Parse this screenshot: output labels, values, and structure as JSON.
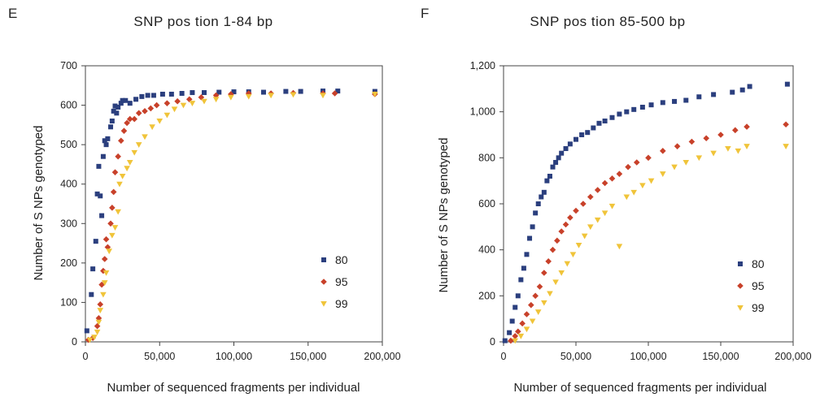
{
  "chart_data": [
    {
      "type": "scatter",
      "panel_letter": "E",
      "title": "SNP pos tion 1-84 bp",
      "xlabel": "Number of sequenced fragments per individual",
      "ylabel": "Number of S NPs genotyped",
      "xlim": [
        0,
        200000
      ],
      "ylim": [
        0,
        700
      ],
      "xticks": [
        0,
        50000,
        100000,
        150000,
        200000
      ],
      "xtick_labels": [
        "0",
        "50,000",
        "100,000",
        "150,000",
        "200,000"
      ],
      "yticks": [
        0,
        100,
        200,
        300,
        400,
        500,
        600,
        700
      ],
      "ytick_labels": [
        "0",
        "100",
        "200",
        "300",
        "400",
        "500",
        "600",
        "700"
      ],
      "legend_position": "bottom-right",
      "series": [
        {
          "name": "80",
          "color": "#2b3f7e",
          "marker": "square",
          "points": [
            [
              1000,
              28
            ],
            [
              4000,
              120
            ],
            [
              5000,
              185
            ],
            [
              7000,
              255
            ],
            [
              8000,
              375
            ],
            [
              9000,
              445
            ],
            [
              10000,
              370
            ],
            [
              11000,
              320
            ],
            [
              12000,
              470
            ],
            [
              13000,
              510
            ],
            [
              14000,
              500
            ],
            [
              15000,
              515
            ],
            [
              17000,
              545
            ],
            [
              18000,
              560
            ],
            [
              19000,
              585
            ],
            [
              20000,
              598
            ],
            [
              21000,
              580
            ],
            [
              22000,
              595
            ],
            [
              24000,
              605
            ],
            [
              25000,
              612
            ],
            [
              27000,
              612
            ],
            [
              30000,
              605
            ],
            [
              34000,
              615
            ],
            [
              38000,
              622
            ],
            [
              42000,
              625
            ],
            [
              46000,
              625
            ],
            [
              52000,
              628
            ],
            [
              58000,
              628
            ],
            [
              65000,
              630
            ],
            [
              72000,
              632
            ],
            [
              80000,
              632
            ],
            [
              90000,
              633
            ],
            [
              100000,
              634
            ],
            [
              110000,
              634
            ],
            [
              120000,
              633
            ],
            [
              135000,
              635
            ],
            [
              145000,
              635
            ],
            [
              160000,
              636
            ],
            [
              170000,
              636
            ],
            [
              195000,
              635
            ]
          ]
        },
        {
          "name": "95",
          "color": "#c8412a",
          "marker": "diamond",
          "points": [
            [
              2000,
              5
            ],
            [
              5000,
              10
            ],
            [
              8000,
              40
            ],
            [
              9000,
              60
            ],
            [
              10000,
              95
            ],
            [
              11000,
              145
            ],
            [
              12000,
              180
            ],
            [
              13000,
              210
            ],
            [
              14000,
              260
            ],
            [
              15000,
              240
            ],
            [
              17000,
              300
            ],
            [
              18000,
              340
            ],
            [
              19000,
              380
            ],
            [
              20000,
              430
            ],
            [
              22000,
              470
            ],
            [
              24000,
              510
            ],
            [
              26000,
              535
            ],
            [
              28000,
              555
            ],
            [
              30000,
              565
            ],
            [
              33000,
              565
            ],
            [
              36000,
              580
            ],
            [
              40000,
              585
            ],
            [
              44000,
              592
            ],
            [
              48000,
              600
            ],
            [
              55000,
              605
            ],
            [
              62000,
              610
            ],
            [
              70000,
              615
            ],
            [
              78000,
              620
            ],
            [
              88000,
              625
            ],
            [
              98000,
              628
            ],
            [
              110000,
              630
            ],
            [
              125000,
              630
            ],
            [
              140000,
              631
            ],
            [
              160000,
              630
            ],
            [
              168000,
              630
            ],
            [
              195000,
              628
            ]
          ]
        },
        {
          "name": "99",
          "color": "#f0c43a",
          "marker": "triangle",
          "points": [
            [
              3000,
              5
            ],
            [
              6000,
              12
            ],
            [
              8000,
              25
            ],
            [
              9000,
              50
            ],
            [
              10000,
              80
            ],
            [
              12000,
              120
            ],
            [
              13000,
              150
            ],
            [
              14000,
              175
            ],
            [
              16000,
              230
            ],
            [
              18000,
              270
            ],
            [
              20000,
              290
            ],
            [
              22000,
              330
            ],
            [
              23000,
              400
            ],
            [
              25000,
              420
            ],
            [
              28000,
              440
            ],
            [
              30000,
              455
            ],
            [
              33000,
              480
            ],
            [
              36000,
              500
            ],
            [
              40000,
              520
            ],
            [
              45000,
              545
            ],
            [
              50000,
              560
            ],
            [
              55000,
              575
            ],
            [
              60000,
              590
            ],
            [
              66000,
              600
            ],
            [
              72000,
              605
            ],
            [
              80000,
              610
            ],
            [
              88000,
              615
            ],
            [
              98000,
              620
            ],
            [
              110000,
              622
            ],
            [
              125000,
              625
            ],
            [
              140000,
              627
            ],
            [
              160000,
              625
            ],
            [
              195000,
              628
            ]
          ]
        }
      ]
    },
    {
      "type": "scatter",
      "panel_letter": "F",
      "title": "SNP pos tion 85-500 bp",
      "xlabel": "Number of sequenced fragments per individual",
      "ylabel": "Number of S NPs genotyped",
      "xlim": [
        0,
        200000
      ],
      "ylim": [
        0,
        1200
      ],
      "xticks": [
        0,
        50000,
        100000,
        150000,
        200000
      ],
      "xtick_labels": [
        "0",
        "50,000",
        "100,000",
        "150,000",
        "200,000"
      ],
      "yticks": [
        0,
        200,
        400,
        600,
        800,
        1000,
        1200
      ],
      "ytick_labels": [
        "0",
        "200",
        "400",
        "600",
        "800",
        "1,000",
        "1,200"
      ],
      "legend_position": "bottom-right",
      "series": [
        {
          "name": "80",
          "color": "#2b3f7e",
          "marker": "square",
          "points": [
            [
              1000,
              5
            ],
            [
              4000,
              40
            ],
            [
              6000,
              90
            ],
            [
              8000,
              150
            ],
            [
              10000,
              200
            ],
            [
              12000,
              270
            ],
            [
              14000,
              320
            ],
            [
              16000,
              380
            ],
            [
              18000,
              450
            ],
            [
              20000,
              500
            ],
            [
              22000,
              560
            ],
            [
              24000,
              600
            ],
            [
              26000,
              630
            ],
            [
              28000,
              650
            ],
            [
              30000,
              700
            ],
            [
              32000,
              720
            ],
            [
              34000,
              760
            ],
            [
              36000,
              780
            ],
            [
              38000,
              800
            ],
            [
              40000,
              820
            ],
            [
              43000,
              840
            ],
            [
              46000,
              860
            ],
            [
              50000,
              880
            ],
            [
              54000,
              900
            ],
            [
              58000,
              910
            ],
            [
              62000,
              930
            ],
            [
              66000,
              950
            ],
            [
              70000,
              960
            ],
            [
              75000,
              975
            ],
            [
              80000,
              990
            ],
            [
              85000,
              1000
            ],
            [
              90000,
              1010
            ],
            [
              96000,
              1020
            ],
            [
              102000,
              1030
            ],
            [
              110000,
              1040
            ],
            [
              118000,
              1045
            ],
            [
              126000,
              1050
            ],
            [
              135000,
              1065
            ],
            [
              145000,
              1075
            ],
            [
              158000,
              1085
            ],
            [
              165000,
              1095
            ],
            [
              170000,
              1110
            ],
            [
              196000,
              1120
            ]
          ]
        },
        {
          "name": "95",
          "color": "#c8412a",
          "marker": "diamond",
          "points": [
            [
              5000,
              5
            ],
            [
              8000,
              25
            ],
            [
              10000,
              45
            ],
            [
              13000,
              80
            ],
            [
              16000,
              120
            ],
            [
              19000,
              160
            ],
            [
              22000,
              200
            ],
            [
              25000,
              240
            ],
            [
              28000,
              300
            ],
            [
              31000,
              350
            ],
            [
              34000,
              400
            ],
            [
              37000,
              440
            ],
            [
              40000,
              480
            ],
            [
              43000,
              510
            ],
            [
              46000,
              540
            ],
            [
              50000,
              570
            ],
            [
              55000,
              600
            ],
            [
              60000,
              630
            ],
            [
              65000,
              660
            ],
            [
              70000,
              690
            ],
            [
              75000,
              710
            ],
            [
              80000,
              730
            ],
            [
              86000,
              760
            ],
            [
              92000,
              780
            ],
            [
              100000,
              800
            ],
            [
              110000,
              830
            ],
            [
              120000,
              850
            ],
            [
              130000,
              870
            ],
            [
              140000,
              885
            ],
            [
              150000,
              900
            ],
            [
              160000,
              920
            ],
            [
              168000,
              935
            ],
            [
              195000,
              945
            ]
          ]
        },
        {
          "name": "99",
          "color": "#f0c43a",
          "marker": "triangle",
          "points": [
            [
              8000,
              5
            ],
            [
              12000,
              25
            ],
            [
              16000,
              55
            ],
            [
              20000,
              90
            ],
            [
              24000,
              130
            ],
            [
              28000,
              170
            ],
            [
              32000,
              210
            ],
            [
              36000,
              260
            ],
            [
              40000,
              300
            ],
            [
              44000,
              340
            ],
            [
              48000,
              380
            ],
            [
              52000,
              420
            ],
            [
              56000,
              460
            ],
            [
              60000,
              500
            ],
            [
              65000,
              530
            ],
            [
              70000,
              560
            ],
            [
              75000,
              590
            ],
            [
              80000,
              415
            ],
            [
              85000,
              630
            ],
            [
              90000,
              650
            ],
            [
              96000,
              680
            ],
            [
              102000,
              700
            ],
            [
              110000,
              730
            ],
            [
              118000,
              760
            ],
            [
              126000,
              780
            ],
            [
              135000,
              800
            ],
            [
              145000,
              820
            ],
            [
              155000,
              840
            ],
            [
              162000,
              830
            ],
            [
              168000,
              850
            ],
            [
              195000,
              850
            ]
          ]
        }
      ]
    }
  ]
}
